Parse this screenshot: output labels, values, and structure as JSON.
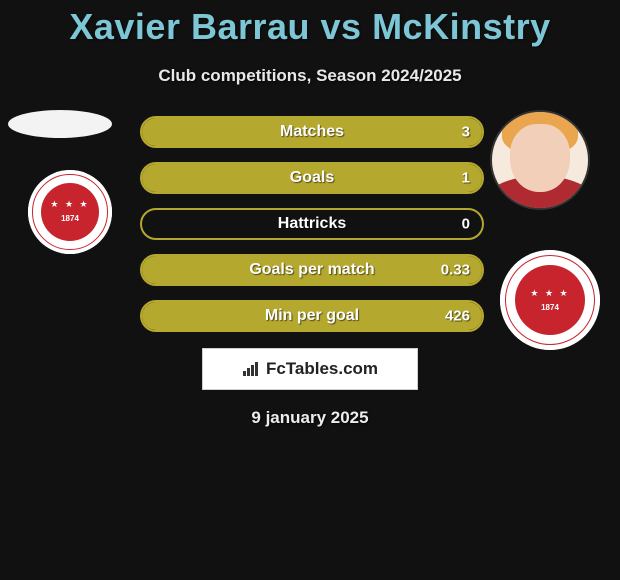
{
  "title": "Xavier Barrau vs McKinstry",
  "subtitle": "Club competitions, Season 2024/2025",
  "date": "9 january 2025",
  "logo_text": "FcTables.com",
  "colors": {
    "title": "#7cc6d6",
    "bar_fill": "#b5a82e",
    "bar_border": "#b5a82e",
    "crest_red": "#c8242e",
    "background": "#111111",
    "text": "#ffffff"
  },
  "crest": {
    "year": "1874"
  },
  "stats": [
    {
      "label": "Matches",
      "left_pct": 0,
      "right_pct": 100,
      "right_val": "3"
    },
    {
      "label": "Goals",
      "left_pct": 0,
      "right_pct": 100,
      "right_val": "1"
    },
    {
      "label": "Hattricks",
      "left_pct": 0,
      "right_pct": 0,
      "right_val": "0"
    },
    {
      "label": "Goals per match",
      "left_pct": 0,
      "right_pct": 100,
      "right_val": "0.33"
    },
    {
      "label": "Min per goal",
      "left_pct": 0,
      "right_pct": 100,
      "right_val": "426"
    }
  ]
}
